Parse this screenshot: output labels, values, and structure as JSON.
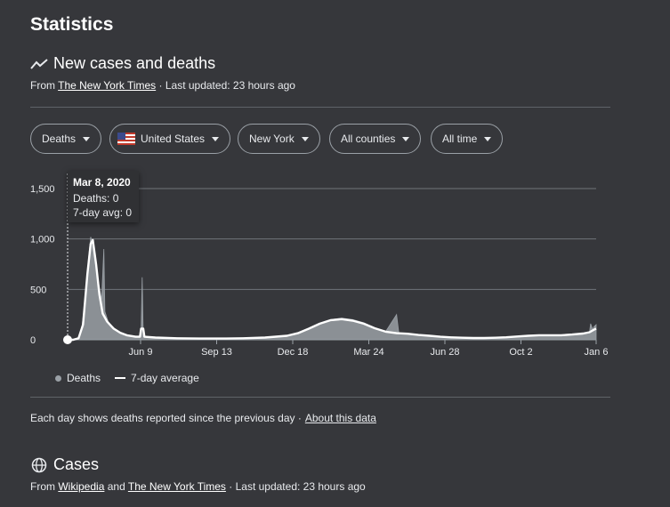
{
  "page": {
    "title": "Statistics"
  },
  "section1": {
    "title": "New cases and deaths",
    "source_prefix": "From",
    "source_link": "The New York Times",
    "updated": "· Last updated: 23 hours ago"
  },
  "filters": {
    "metric": "Deaths",
    "country": "United States",
    "state": "New York",
    "county": "All counties",
    "range": "All time"
  },
  "tooltip": {
    "date": "Mar 8, 2020",
    "deaths": "Deaths: 0",
    "avg": "7-day avg: 0"
  },
  "chart_data": {
    "type": "area",
    "title": "",
    "xlabel": "",
    "ylabel": "",
    "ylim": [
      0,
      1500
    ],
    "yticks": [
      "0",
      "500",
      "1,000",
      "1,500"
    ],
    "xticks": [
      "Jun 9",
      "Sep 13",
      "Dec 18",
      "Mar 24",
      "Jun 28",
      "Oct 2",
      "Jan 6"
    ],
    "grid": true,
    "legend": "bottom-left",
    "series": [
      {
        "name": "Deaths",
        "color": "#9aa0a6",
        "points": [
          [
            0,
            0
          ],
          [
            0.5,
            0
          ],
          [
            1,
            20
          ],
          [
            1.3,
            120
          ],
          [
            1.6,
            400
          ],
          [
            1.9,
            800
          ],
          [
            2.1,
            1020
          ],
          [
            2.3,
            960
          ],
          [
            2.6,
            700
          ],
          [
            2.9,
            520
          ],
          [
            3.1,
            400
          ],
          [
            3.3,
            900
          ],
          [
            3.4,
            280
          ],
          [
            3.7,
            180
          ],
          [
            4.2,
            110
          ],
          [
            4.7,
            70
          ],
          [
            5.2,
            45
          ],
          [
            6,
            30
          ],
          [
            6.6,
            30
          ],
          [
            6.7,
            100
          ],
          [
            6.8,
            620
          ],
          [
            6.9,
            30
          ],
          [
            8,
            20
          ],
          [
            10,
            15
          ],
          [
            12,
            12
          ],
          [
            14,
            12
          ],
          [
            16,
            15
          ],
          [
            18,
            20
          ],
          [
            19,
            25
          ],
          [
            20,
            35
          ],
          [
            21,
            60
          ],
          [
            22,
            110
          ],
          [
            23,
            160
          ],
          [
            24,
            200
          ],
          [
            25,
            215
          ],
          [
            26,
            200
          ],
          [
            27,
            170
          ],
          [
            28,
            120
          ],
          [
            29,
            80
          ],
          [
            30,
            250
          ],
          [
            30.2,
            70
          ],
          [
            31,
            60
          ],
          [
            32,
            45
          ],
          [
            33,
            40
          ],
          [
            34,
            30
          ],
          [
            35,
            25
          ],
          [
            36,
            20
          ],
          [
            37,
            18
          ],
          [
            38,
            18
          ],
          [
            39,
            20
          ],
          [
            40,
            25
          ],
          [
            41,
            35
          ],
          [
            42,
            40
          ],
          [
            43,
            45
          ],
          [
            44,
            45
          ],
          [
            45,
            45
          ],
          [
            46,
            50
          ],
          [
            47,
            60
          ],
          [
            47.6,
            80
          ],
          [
            47.7,
            160
          ],
          [
            47.9,
            100
          ],
          [
            48,
            130
          ],
          [
            48.2,
            150
          ]
        ]
      },
      {
        "name": "7-day average",
        "color": "#ffffff",
        "points": [
          [
            0,
            0
          ],
          [
            0.5,
            0
          ],
          [
            1,
            15
          ],
          [
            1.4,
            150
          ],
          [
            1.8,
            650
          ],
          [
            2.1,
            950
          ],
          [
            2.3,
            990
          ],
          [
            2.6,
            750
          ],
          [
            2.9,
            450
          ],
          [
            3.2,
            260
          ],
          [
            3.6,
            180
          ],
          [
            4.2,
            110
          ],
          [
            4.8,
            70
          ],
          [
            5.4,
            45
          ],
          [
            6.2,
            30
          ],
          [
            6.6,
            30
          ],
          [
            6.7,
            110
          ],
          [
            6.9,
            110
          ],
          [
            7,
            30
          ],
          [
            8,
            22
          ],
          [
            10,
            15
          ],
          [
            12,
            12
          ],
          [
            14,
            12
          ],
          [
            16,
            15
          ],
          [
            18,
            22
          ],
          [
            20,
            40
          ],
          [
            21,
            65
          ],
          [
            22,
            110
          ],
          [
            23,
            160
          ],
          [
            24,
            195
          ],
          [
            25,
            205
          ],
          [
            26,
            190
          ],
          [
            27,
            160
          ],
          [
            28,
            115
          ],
          [
            29,
            80
          ],
          [
            30,
            65
          ],
          [
            31,
            60
          ],
          [
            32,
            48
          ],
          [
            33,
            40
          ],
          [
            34,
            30
          ],
          [
            35,
            24
          ],
          [
            36,
            20
          ],
          [
            37,
            18
          ],
          [
            38,
            18
          ],
          [
            39,
            20
          ],
          [
            40,
            25
          ],
          [
            41,
            33
          ],
          [
            42,
            40
          ],
          [
            43,
            45
          ],
          [
            44,
            45
          ],
          [
            45,
            45
          ],
          [
            46,
            52
          ],
          [
            47,
            62
          ],
          [
            47.6,
            75
          ],
          [
            48,
            100
          ],
          [
            48.2,
            110
          ]
        ]
      }
    ],
    "x_range": [
      0,
      48.2
    ],
    "hover_index": 0
  },
  "legend": {
    "deaths": "Deaths",
    "avg": "7-day average"
  },
  "note": {
    "text": "Each day shows deaths reported since the previous day ·",
    "link": "About this data"
  },
  "section2": {
    "title": "Cases",
    "source_prefix": "From",
    "source_link1": "Wikipedia",
    "and": "and",
    "source_link2": "The New York Times",
    "updated": "· Last updated: 23 hours ago"
  },
  "icons": {
    "trend": "trend-line-icon",
    "globe": "globe-icon",
    "flag": "us-flag-icon",
    "caret": "caret-down-icon"
  }
}
